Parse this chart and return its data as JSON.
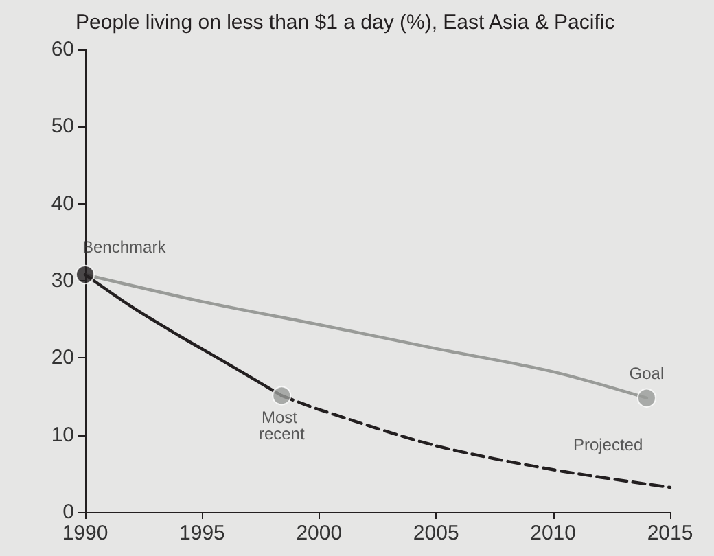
{
  "chart_data": {
    "type": "line",
    "title": "People living on less than $1 a day (%), East Asia & Pacific",
    "xlim": [
      1990,
      2015
    ],
    "xticks": [
      1990,
      1995,
      2000,
      2005,
      2010,
      2015
    ],
    "ylim": [
      0,
      60
    ],
    "yticks": [
      0,
      10,
      20,
      30,
      40,
      50,
      60
    ],
    "grid": false,
    "series": [
      {
        "color": "#999b98",
        "x": [
          1990,
          1995,
          2000,
          2005,
          2010,
          2014
        ],
        "values": [
          30.8,
          27.3,
          24.3,
          21.2,
          18.2,
          14.8
        ],
        "line_style": "solid"
      },
      {
        "color": "#231f20",
        "x": [
          1990,
          1992,
          1994,
          1996,
          1998.4
        ],
        "values": [
          30.8,
          26.6,
          22.9,
          19.4,
          15.1
        ],
        "line_style": "solid"
      },
      {
        "color": "#231f20",
        "x": [
          1998.4,
          2000,
          2005,
          2010,
          2015
        ],
        "values": [
          15.1,
          13.3,
          8.6,
          5.5,
          3.2
        ],
        "line_style": "dashed"
      },
      {
        "type": "scatter",
        "color": "#231f20",
        "x": [
          1990
        ],
        "values": [
          30.8
        ],
        "marker": "circle"
      },
      {
        "type": "scatter",
        "color": "#999b98",
        "x": [
          1998.4
        ],
        "values": [
          15.1
        ],
        "marker": "circle"
      },
      {
        "type": "scatter",
        "color": "#999b98",
        "x": [
          2014
        ],
        "values": [
          14.8
        ],
        "marker": "circle"
      }
    ],
    "annotations": [
      {
        "text": "Benchmark",
        "x": 1990,
        "y": 30.8
      },
      {
        "text": "Most recent",
        "x": 1998.4,
        "y": 15.1
      },
      {
        "text": "Goal",
        "x": 2014,
        "y": 14.8
      },
      {
        "text": "Projected",
        "x": 2010,
        "y": 5.5
      }
    ]
  }
}
